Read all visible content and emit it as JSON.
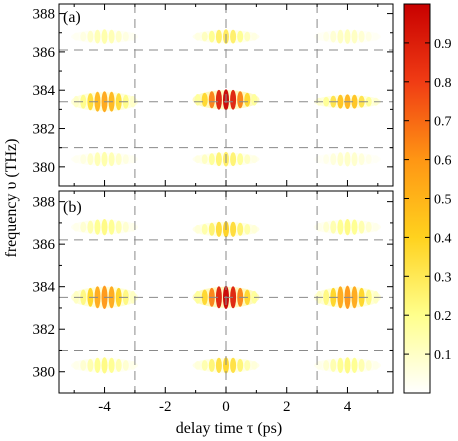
{
  "chart_data": [
    {
      "type": "heatmap",
      "panel_label": "(a)",
      "xlabel": "delay time τ (ps)",
      "ylabel": "frequency υ (THz)",
      "xlim": [
        -5.5,
        5.5
      ],
      "ylim": [
        379,
        388.5
      ],
      "x_ticks": [
        -4,
        -2,
        0,
        2,
        4
      ],
      "y_ticks": [
        380,
        382,
        384,
        386,
        388
      ],
      "guide_lines_x": [
        -3,
        0,
        3
      ],
      "guide_lines_y": [
        381,
        383.4,
        386.1
      ],
      "blobs": [
        {
          "x": 0,
          "y": 383.5,
          "peak": 1.0
        },
        {
          "x": -4,
          "y": 383.4,
          "peak": 0.55
        },
        {
          "x": 4,
          "y": 383.4,
          "peak": 0.5
        },
        {
          "x": 0,
          "y": 386.8,
          "peak": 0.3
        },
        {
          "x": -4,
          "y": 386.8,
          "peak": 0.15
        },
        {
          "x": 4,
          "y": 386.8,
          "peak": 0.12
        },
        {
          "x": 0,
          "y": 380.4,
          "peak": 0.28
        },
        {
          "x": -4,
          "y": 380.4,
          "peak": 0.15
        },
        {
          "x": 4,
          "y": 380.4,
          "peak": 0.1
        }
      ]
    },
    {
      "type": "heatmap",
      "panel_label": "(b)",
      "xlabel": "delay time τ (ps)",
      "ylabel": "frequency υ (THz)",
      "xlim": [
        -5.5,
        5.5
      ],
      "ylim": [
        379,
        388.5
      ],
      "x_ticks": [
        -4,
        -2,
        0,
        2,
        4
      ],
      "y_ticks": [
        380,
        382,
        384,
        386,
        388
      ],
      "guide_lines_x": [
        -3,
        0,
        3
      ],
      "guide_lines_y": [
        381,
        383.5,
        386.2
      ],
      "blobs": [
        {
          "x": 0,
          "y": 383.5,
          "peak": 1.0
        },
        {
          "x": -4,
          "y": 383.5,
          "peak": 0.6
        },
        {
          "x": 4,
          "y": 383.5,
          "peak": 0.6
        },
        {
          "x": 0,
          "y": 386.7,
          "peak": 0.4
        },
        {
          "x": -4,
          "y": 386.8,
          "peak": 0.22
        },
        {
          "x": 4,
          "y": 386.8,
          "peak": 0.22
        },
        {
          "x": 0,
          "y": 380.3,
          "peak": 0.38
        },
        {
          "x": -4,
          "y": 380.3,
          "peak": 0.22
        },
        {
          "x": 4,
          "y": 380.3,
          "peak": 0.22
        }
      ]
    }
  ],
  "colorbar": {
    "range": [
      0,
      1
    ],
    "ticks": [
      0.1,
      0.2,
      0.3,
      0.4,
      0.5,
      0.6,
      0.7,
      0.8,
      0.9
    ],
    "tick_labels": [
      "0.1",
      "0.2",
      "0.3",
      "0.4",
      "0.5",
      "0.6",
      "0.7",
      "0.8",
      "0.9"
    ],
    "colors": [
      "#ffffff",
      "#ffff8c",
      "#ffd21e",
      "#ff9614",
      "#f03c14",
      "#c80000"
    ]
  }
}
